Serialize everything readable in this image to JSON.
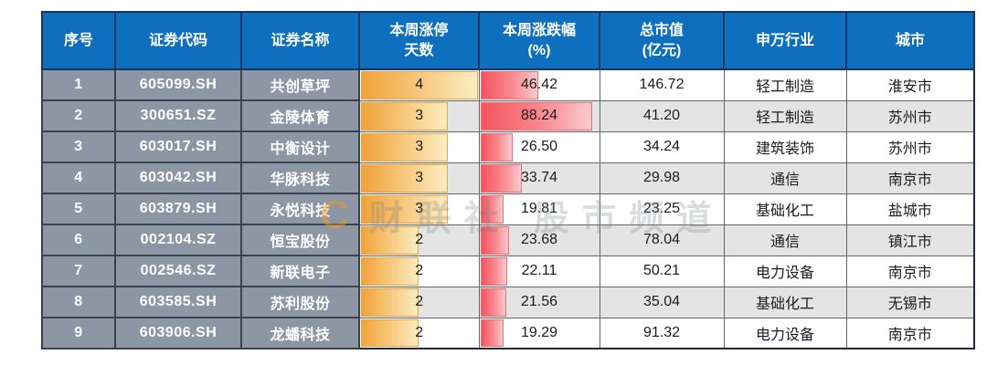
{
  "watermark": {
    "logo": "C",
    "text": "财联社 股市频道"
  },
  "colors": {
    "header_bg": "#0E6FBE",
    "header_text": "#FFFFFF",
    "left_cell_bg": "#8C96A4",
    "alt_row_bg": "#E4E4E4",
    "days_bar_start": "#F1A23A",
    "days_bar_end": "#FCECC2",
    "pct_bar_start": "#F4545E",
    "pct_bar_end": "#FBCBCD"
  },
  "chart_data": {
    "type": "table",
    "title": "",
    "bar_scales": {
      "days_max": 4,
      "pct_max": 88.24,
      "pct_longest_pct": 95
    },
    "columns": [
      {
        "key": "index",
        "label": "序号"
      },
      {
        "key": "code",
        "label": "证券代码"
      },
      {
        "key": "name",
        "label": "证券名称"
      },
      {
        "key": "limit_days",
        "label": "本周涨停\n天数"
      },
      {
        "key": "pct_change",
        "label": "本周涨跌幅\n(%)"
      },
      {
        "key": "market_cap",
        "label": "总市值\n(亿元)"
      },
      {
        "key": "industry",
        "label": "申万行业"
      },
      {
        "key": "city",
        "label": "城市"
      }
    ],
    "rows": [
      {
        "index": "1",
        "code": "605099.SH",
        "name": "共创草坪",
        "limit_days": "4",
        "pct_change": "46.42",
        "market_cap": "146.72",
        "industry": "轻工制造",
        "city": "淮安市"
      },
      {
        "index": "2",
        "code": "300651.SZ",
        "name": "金陵体育",
        "limit_days": "3",
        "pct_change": "88.24",
        "market_cap": "41.20",
        "industry": "轻工制造",
        "city": "苏州市"
      },
      {
        "index": "3",
        "code": "603017.SH",
        "name": "中衡设计",
        "limit_days": "3",
        "pct_change": "26.50",
        "market_cap": "34.24",
        "industry": "建筑装饰",
        "city": "苏州市"
      },
      {
        "index": "4",
        "code": "603042.SH",
        "name": "华脉科技",
        "limit_days": "3",
        "pct_change": "33.74",
        "market_cap": "29.98",
        "industry": "通信",
        "city": "南京市"
      },
      {
        "index": "5",
        "code": "603879.SH",
        "name": "永悦科技",
        "limit_days": "3",
        "pct_change": "19.81",
        "market_cap": "23.25",
        "industry": "基础化工",
        "city": "盐城市"
      },
      {
        "index": "6",
        "code": "002104.SZ",
        "name": "恒宝股份",
        "limit_days": "2",
        "pct_change": "23.68",
        "market_cap": "78.04",
        "industry": "通信",
        "city": "镇江市"
      },
      {
        "index": "7",
        "code": "002546.SZ",
        "name": "新联电子",
        "limit_days": "2",
        "pct_change": "22.11",
        "market_cap": "50.21",
        "industry": "电力设备",
        "city": "南京市"
      },
      {
        "index": "8",
        "code": "603585.SH",
        "name": "苏利股份",
        "limit_days": "2",
        "pct_change": "21.56",
        "market_cap": "35.04",
        "industry": "基础化工",
        "city": "无锡市"
      },
      {
        "index": "9",
        "code": "603906.SH",
        "name": "龙蟠科技",
        "limit_days": "2",
        "pct_change": "19.29",
        "market_cap": "91.32",
        "industry": "电力设备",
        "city": "南京市"
      }
    ]
  }
}
